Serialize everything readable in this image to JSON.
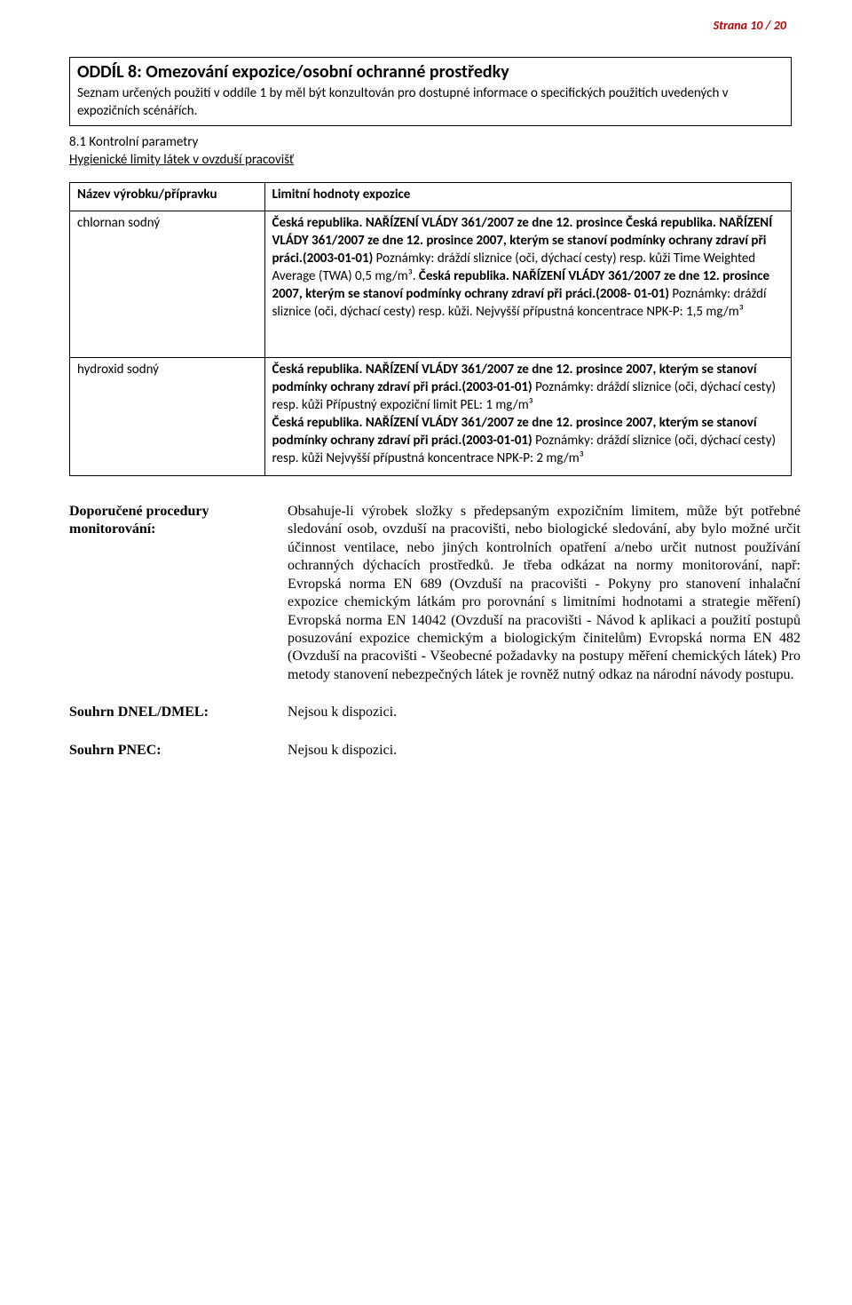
{
  "page_number": "Strana 10 / 20",
  "colors": {
    "page_number": "#c00000",
    "text": "#000000",
    "border": "#000000",
    "background": "#ffffff"
  },
  "section": {
    "title": "ODDÍL 8: Omezování expozice/osobní ochranné prostředky",
    "intro": "Seznam určených použití v oddíle 1 by měl být konzultován pro dostupné informace o specifických použitích uvedených v expozičních scénářích."
  },
  "sub": {
    "number": "8.1",
    "text": "Kontrolní parametry",
    "link": "Hygienické limity látek v ovzduší pracovišť"
  },
  "table": {
    "header_left": "Název výrobku/přípravku",
    "header_right": "Limitní hodnoty expozice",
    "rows": [
      {
        "left": "chlornan sodný",
        "right_parts": [
          {
            "bold": true,
            "text": "Česká republika. NAŘÍZENÍ VLÁDY 361/2007 ze dne 12. prosince Česká republika. NAŘÍZENÍ VLÁDY 361/2007 ze dne 12. prosince 2007, kterým se stanoví podmínky ochrany zdraví při práci.(2003-01-01) "
          },
          {
            "bold": false,
            "text": "Poznámky: dráždí sliznice (oči, dýchací cesty) resp. kůži Time Weighted Average (TWA) 0,5 mg/m³. "
          },
          {
            "bold": true,
            "text": "Česká republika. NAŘÍZENÍ VLÁDY 361/2007 ze dne 12. prosince 2007, kterým se stanoví podmínky ochrany zdraví při práci.(2008- 01-01) "
          },
          {
            "bold": false,
            "text": "Poznámky: dráždí sliznice (oči, dýchací cesty) resp. kůži. Nejvyšší přípustná koncentrace NPK-P: 1,5 mg/m³"
          }
        ]
      },
      {
        "left": "hydroxid sodný",
        "right_parts": [
          {
            "bold": true,
            "text": "Česká republika. NAŘÍZENÍ VLÁDY 361/2007 ze dne 12. prosince 2007, kterým se stanoví podmínky ochrany zdraví při práci.(2003-01-01) "
          },
          {
            "bold": false,
            "text": "Poznámky: dráždí sliznice (oči, dýchací cesty) resp. kůži Přípustný expoziční limit PEL: 1 mg/m³"
          },
          {
            "break": true
          },
          {
            "bold": true,
            "text": "Česká republika. NAŘÍZENÍ VLÁDY 361/2007 ze dne 12. prosince 2007, kterým se stanoví podmínky ochrany zdraví při práci.(2003-01-01) "
          },
          {
            "bold": false,
            "text": "Poznámky: dráždí sliznice (oči, dýchací cesty) resp. kůži Nejvyšší přípustná koncentrace NPK-P: 2 mg/m³"
          }
        ]
      }
    ]
  },
  "procedures": [
    {
      "label": "Doporučené procedury monitorování:",
      "text": "Obsahuje-li výrobek složky s předepsaným expozičním limitem, může být potřebné sledování osob, ovzduší na pracovišti, nebo biologické sledování, aby bylo možné určit účinnost ventilace, nebo jiných kontrolních opatření a/nebo určit nutnost používání ochranných dýchacích prostředků. Je třeba odkázat na normy monitorování, např: Evropská norma EN 689 (Ovzduší na pracovišti - Pokyny pro stanovení inhalační expozice chemickým látkám pro porovnání s limitními hodnotami a strategie měření) Evropská norma EN 14042 (Ovzduší na pracovišti - Návod k aplikaci a použití postupů posuzování expozice chemickým a biologickým činitelům) Evropská norma EN 482 (Ovzduší na pracovišti - Všeobecné požadavky na postupy měření chemických látek) Pro metody stanovení nebezpečných látek je rovněž nutný odkaz na národní návody postupu.",
      "justify": true
    },
    {
      "label": "Souhrn DNEL/DMEL:",
      "text": "Nejsou k dispozici.",
      "justify": false
    },
    {
      "label": "Souhrn PNEC:",
      "text": "Nejsou k dispozici.",
      "justify": false
    }
  ]
}
